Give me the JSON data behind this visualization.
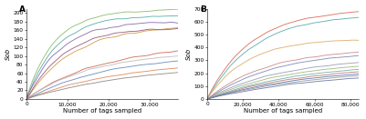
{
  "panel_A": {
    "title": "A",
    "xlabel": "Number of tags sampled",
    "ylabel": "Sob",
    "xlim": [
      0,
      37000
    ],
    "ylim": [
      0,
      210
    ],
    "xticks": [
      0,
      10000,
      20000,
      30000
    ],
    "yticks": [
      0,
      20,
      40,
      60,
      80,
      100,
      120,
      140,
      160,
      180,
      200
    ],
    "curves": [
      {
        "color": "#88bb66",
        "final": 208,
        "k_scale": 5.5,
        "noise": 0.03
      },
      {
        "color": "#55aaaa",
        "final": 195,
        "k_scale": 5.0,
        "noise": 0.03
      },
      {
        "color": "#8866aa",
        "final": 182,
        "k_scale": 4.5,
        "noise": 0.04
      },
      {
        "color": "#cc9944",
        "final": 172,
        "k_scale": 3.2,
        "noise": 0.03
      },
      {
        "color": "#995577",
        "final": 168,
        "k_scale": 4.0,
        "noise": 0.04
      },
      {
        "color": "#cc6655",
        "final": 128,
        "k_scale": 2.0,
        "noise": 0.03
      },
      {
        "color": "#bbbbbb",
        "final": 113,
        "k_scale": 2.2,
        "noise": 0.03
      },
      {
        "color": "#6688bb",
        "final": 106,
        "k_scale": 1.8,
        "noise": 0.03
      },
      {
        "color": "#dd8855",
        "final": 93,
        "k_scale": 1.5,
        "noise": 0.02
      },
      {
        "color": "#888888",
        "final": 85,
        "k_scale": 1.3,
        "noise": 0.02
      }
    ]
  },
  "panel_B": {
    "title": "B",
    "xlabel": "Number of tags sampled",
    "ylabel": "Sob",
    "xlim": [
      0,
      85000
    ],
    "ylim": [
      0,
      700
    ],
    "xticks": [
      0,
      20000,
      40000,
      60000,
      80000
    ],
    "yticks": [
      0,
      100,
      200,
      300,
      400,
      500,
      600,
      700
    ],
    "curves": [
      {
        "color": "#dd6655",
        "final": 695,
        "k_scale": 3.5,
        "noise": 0.02
      },
      {
        "color": "#55aaaa",
        "final": 660,
        "k_scale": 3.2,
        "noise": 0.02
      },
      {
        "color": "#ddaa66",
        "final": 470,
        "k_scale": 3.8,
        "noise": 0.02
      },
      {
        "color": "#cc8888",
        "final": 395,
        "k_scale": 2.5,
        "noise": 0.02
      },
      {
        "color": "#7788bb",
        "final": 380,
        "k_scale": 2.2,
        "noise": 0.02
      },
      {
        "color": "#9999bb",
        "final": 325,
        "k_scale": 2.0,
        "noise": 0.02
      },
      {
        "color": "#99bb77",
        "final": 305,
        "k_scale": 1.8,
        "noise": 0.02
      },
      {
        "color": "#77aaaa",
        "final": 288,
        "k_scale": 1.6,
        "noise": 0.02
      },
      {
        "color": "#bb7777",
        "final": 272,
        "k_scale": 1.5,
        "noise": 0.02
      },
      {
        "color": "#5577aa",
        "final": 258,
        "k_scale": 1.4,
        "noise": 0.02
      },
      {
        "color": "#999999",
        "final": 248,
        "k_scale": 1.3,
        "noise": 0.02
      },
      {
        "color": "#6677aa",
        "final": 235,
        "k_scale": 1.2,
        "noise": 0.02
      }
    ]
  },
  "bg_color": "#ffffff",
  "line_width": 0.65,
  "font_size_label": 5.0,
  "font_size_tick": 4.2,
  "font_size_title": 6.5
}
